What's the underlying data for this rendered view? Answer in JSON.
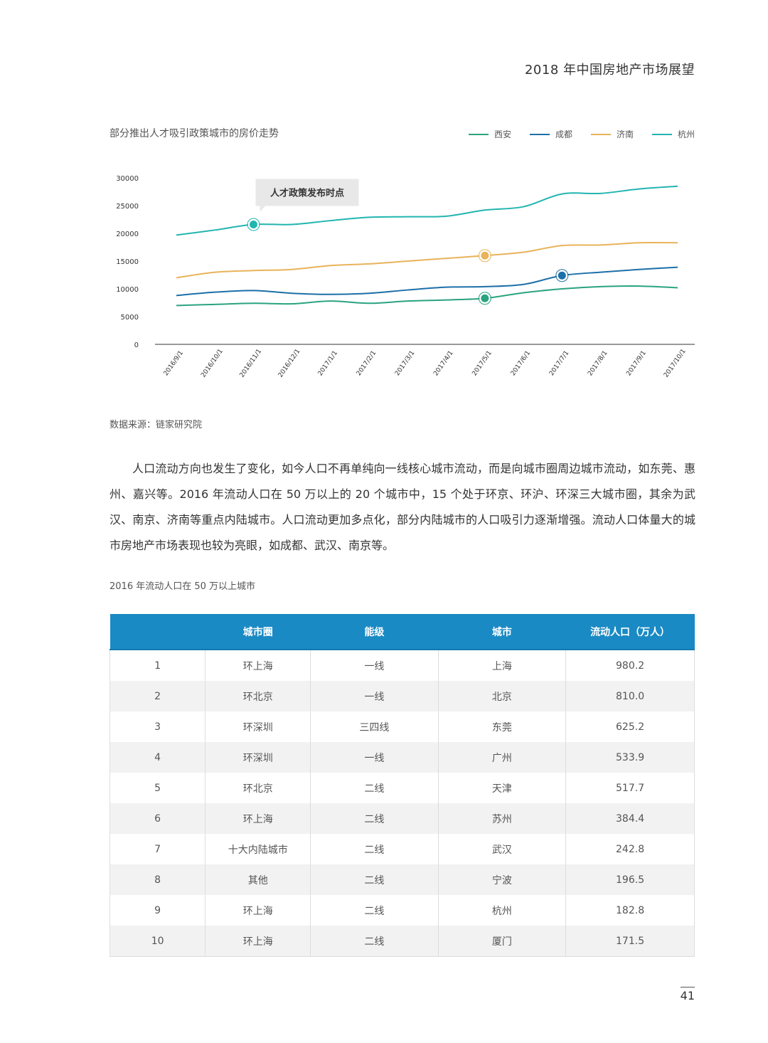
{
  "header": {
    "title": "2018 年中国房地产市场展望"
  },
  "chart_title": "部分推出人才吸引政策城市的房价走势",
  "source": "数据来源：链家研究院",
  "chart_data": {
    "type": "line",
    "title": "部分推出人才吸引政策城市的房价走势",
    "xlabel": "",
    "ylabel": "",
    "ylim": [
      0,
      30000
    ],
    "yticks": [
      0,
      5000,
      10000,
      15000,
      20000,
      25000,
      30000
    ],
    "categories": [
      "2016/9/1",
      "2016/10/1",
      "2016/11/1",
      "2016/12/1",
      "2017/1/1",
      "2017/2/1",
      "2017/3/1",
      "2017/4/1",
      "2017/5/1",
      "2017/6/1",
      "2017/7/1",
      "2017/8/1",
      "2017/9/1",
      "2017/10/1"
    ],
    "legend_position": "top-right",
    "series": [
      {
        "name": "西安",
        "color": "#2aa37f",
        "values": [
          7000,
          7200,
          7400,
          7300,
          7800,
          7400,
          7800,
          8000,
          8300,
          9300,
          10000,
          10400,
          10500,
          10200
        ],
        "marker_index": 8
      },
      {
        "name": "成都",
        "color": "#1c6fa8",
        "values": [
          8800,
          9400,
          9700,
          9200,
          9000,
          9200,
          9800,
          10300,
          10400,
          10800,
          12400,
          13000,
          13500,
          13900
        ],
        "marker_index": 10
      },
      {
        "name": "济南",
        "color": "#e8b35a",
        "values": [
          12000,
          13000,
          13300,
          13500,
          14200,
          14500,
          15000,
          15500,
          16000,
          16600,
          17800,
          17900,
          18300,
          18300
        ],
        "marker_index": 8
      },
      {
        "name": "杭州",
        "color": "#22b5b0",
        "values": [
          19700,
          20600,
          21600,
          21600,
          22300,
          22900,
          23000,
          23100,
          24200,
          24800,
          27100,
          27200,
          28000,
          28500
        ],
        "marker_index": 2
      }
    ],
    "annotation": {
      "text": "人才政策发布时点"
    }
  },
  "paragraph": "人口流动方向也发生了变化，如今人口不再单纯向一线核心城市流动，而是向城市圈周边城市流动，如东莞、惠州、嘉兴等。2016 年流动人口在 50 万以上的 20 个城市中，15 个处于环京、环沪、环深三大城市圈，其余为武汉、南京、济南等重点内陆城市。人口流动更加多点化，部分内陆城市的人口吸引力逐渐增强。流动人口体量大的城市房地产市场表现也较为亮眼，如成都、武汉、南京等。",
  "table": {
    "title": "2016 年流动人口在 50 万以上城市",
    "headers": [
      "",
      "城市圈",
      "能级",
      "城市",
      "流动人口（万人）"
    ],
    "rows": [
      [
        "1",
        "环上海",
        "一线",
        "上海",
        "980.2"
      ],
      [
        "2",
        "环北京",
        "一线",
        "北京",
        "810.0"
      ],
      [
        "3",
        "环深圳",
        "三四线",
        "东莞",
        "625.2"
      ],
      [
        "4",
        "环深圳",
        "一线",
        "广州",
        "533.9"
      ],
      [
        "5",
        "环北京",
        "二线",
        "天津",
        "517.7"
      ],
      [
        "6",
        "环上海",
        "二线",
        "苏州",
        "384.4"
      ],
      [
        "7",
        "十大内陆城市",
        "二线",
        "武汉",
        "242.8"
      ],
      [
        "8",
        "其他",
        "二线",
        "宁波",
        "196.5"
      ],
      [
        "9",
        "环上海",
        "二线",
        "杭州",
        "182.8"
      ],
      [
        "10",
        "环上海",
        "二线",
        "厦门",
        "171.5"
      ]
    ]
  },
  "page_number": "41"
}
